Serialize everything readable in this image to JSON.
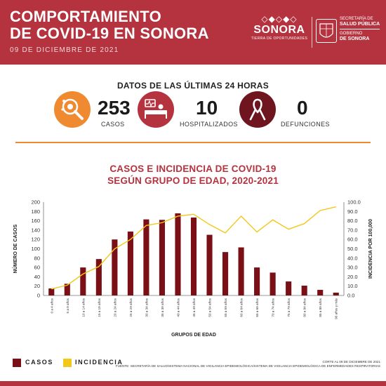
{
  "header": {
    "title_line1": "COMPORTAMIENTO",
    "title_line2": "DE COVID-19 EN SONORA",
    "date": "09 DE DICIEMBRE DE 2021",
    "brand_name": "SONORA",
    "brand_tag": "TIERRA DE OPORTUNIDADES",
    "gov_line1": "SECRETARÍA DE",
    "gov_line2": "SALUD PÚBLICA",
    "gov_line3": "GOBIERNO",
    "gov_line4": "DE SONORA"
  },
  "stats": {
    "title": "DATOS DE LAS ÚLTIMAS 24 HORAS",
    "cases_value": "253",
    "cases_label": "CASOS",
    "hosp_value": "10",
    "hosp_label": "HOSPITALIZADOS",
    "deaths_value": "0",
    "deaths_label": "DEFUNCIONES"
  },
  "colors": {
    "brand_red": "#b5323f",
    "bars": "#7a0f16",
    "line": "#f2c81a",
    "accent_orange": "#ef8a31",
    "dark_red": "#6e1520"
  },
  "icons": {
    "cases": "virus-magnifier-icon",
    "hosp": "hospital-bed-icon",
    "deaths": "ribbon-icon"
  },
  "chart_data": {
    "type": "bar",
    "title_line1": "CASOS E INCIDENCIA DE COVID-19",
    "title_line2": "SEGÚN GRUPO DE EDAD, 2020-2021",
    "xlabel": "GRUPOS DE EDAD",
    "ylabel": "NÚMERO DE CASOS",
    "y2label": "INCIDENCIA POR 100,000",
    "categories": [
      "0 a 4 años",
      "5 a 9 años",
      "10 a 14 años",
      "15 a 19 años",
      "20 a 24 años",
      "25 a 29 años",
      "30 a 34 años",
      "35 a 39 años",
      "40 a 44 años",
      "45 a 49 años",
      "50 a 54 años",
      "55 a 59 años",
      "60 a 64 años",
      "65 a 69 años",
      "70 a 74 años",
      "75 a 79 años",
      "80 a 84 años",
      "85 a 89 años",
      "90 años y más"
    ],
    "series": [
      {
        "name": "CASOS",
        "type": "bar",
        "axis": "left",
        "values": [
          15,
          25,
          60,
          78,
          120,
          137,
          163,
          162,
          176,
          167,
          130,
          93,
          103,
          60,
          49,
          30,
          21,
          12,
          6
        ]
      },
      {
        "name": "INCIDENCIA",
        "type": "line",
        "axis": "right",
        "values": [
          7,
          11,
          23,
          31,
          50,
          60,
          75,
          78,
          85,
          87,
          76,
          67,
          85,
          68,
          81,
          71,
          77,
          91,
          95
        ]
      }
    ],
    "ylim": [
      0,
      200
    ],
    "yticks": [
      0,
      20,
      40,
      60,
      80,
      100,
      120,
      140,
      160,
      180,
      200
    ],
    "y2lim": [
      0,
      100
    ],
    "y2ticks": [
      "0.0",
      "10.0",
      "20.0",
      "30.0",
      "40.0",
      "50.0",
      "60.0",
      "70.0",
      "80.0",
      "90.0",
      "100.0"
    ],
    "grid": false,
    "legend_position": "bottom-left"
  },
  "legend": {
    "cases": "CASOS",
    "incidence": "INCIDENCIA"
  },
  "footer": {
    "cutoff": "CORTE AL 09 DE DICIEMBRE DE 2021",
    "source": "FUENTE: SECRETARÍA DE SALUD/SISTEMA NACIONAL DE VIGILANCIA EPIDEMIOLÓGICA/SISTEMA DE VIGILANCIA EPIDEMIOLÓGICA DE ENFERMEDADES RESPIRATORIAS"
  }
}
